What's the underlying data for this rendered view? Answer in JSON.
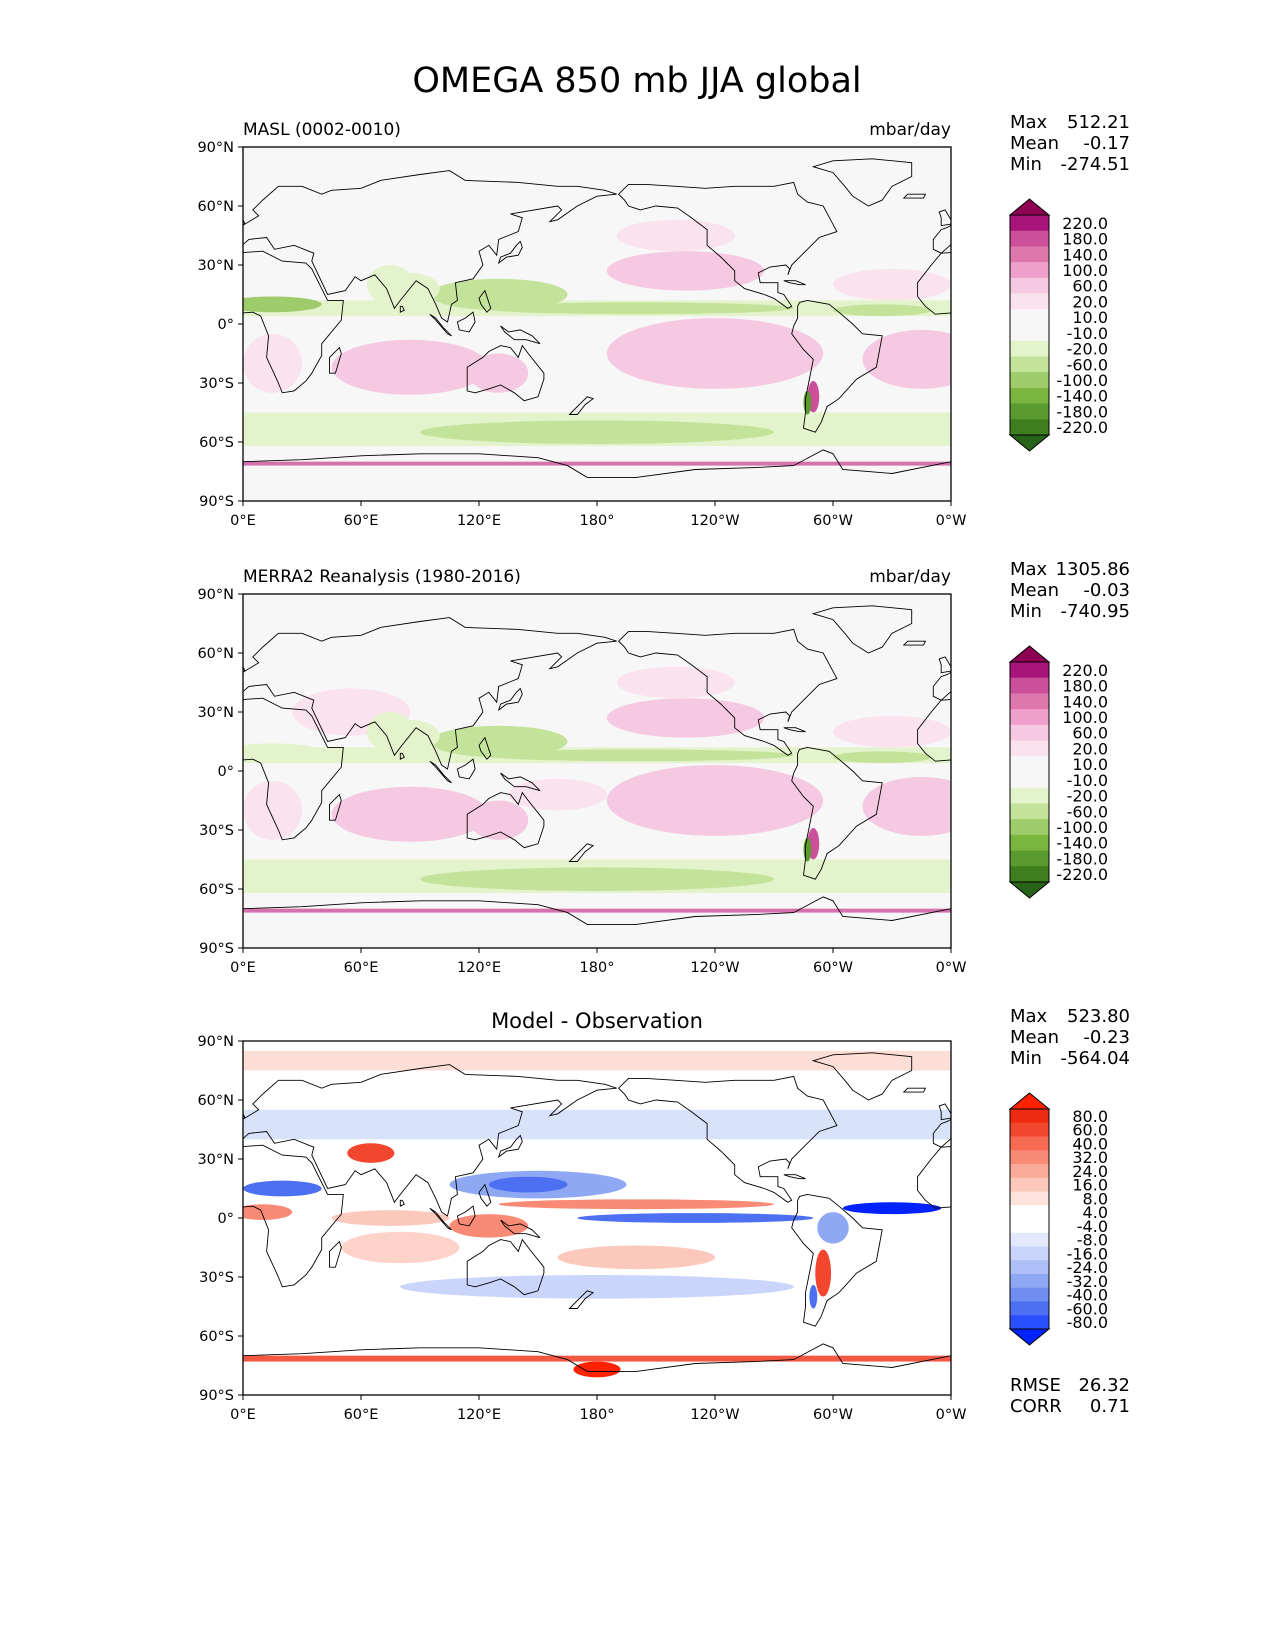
{
  "figure": {
    "title": "OMEGA 850 mb JJA global"
  },
  "colors": {
    "land_outline": "#000000",
    "omega_scale": [
      "#276419",
      "#3d7f1f",
      "#5a9a2e",
      "#79b53f",
      "#9fcc6a",
      "#c4e39a",
      "#e3f3cb",
      "#f7f7f7",
      "#f7f7f7",
      "#fbe2ef",
      "#f5c9e1",
      "#ee9fca",
      "#de77ae",
      "#cc4f9a",
      "#a7147a",
      "#8e0152"
    ],
    "diff_scale": [
      "#0022ff",
      "#2a4fff",
      "#4d6ff2",
      "#6f8ef0",
      "#8fa8f4",
      "#aebff7",
      "#c9d5fa",
      "#e2e9fd",
      "#ffffff",
      "#ffffff",
      "#fde3dc",
      "#fcc8bb",
      "#fbaa99",
      "#f98b76",
      "#f66a52",
      "#f2462f",
      "#ee2a12",
      "#ff2200"
    ]
  },
  "panels": [
    {
      "id": "model",
      "left_title": "MASL (0002-0010)",
      "center_title": "",
      "right_title": "mbar/day",
      "stats": {
        "max_label": "Max",
        "max_value": "512.21",
        "mean_label": "Mean",
        "mean_value": "-0.17",
        "min_label": "Min",
        "min_value": "-274.51"
      },
      "colorbar_levels": [
        "220.0",
        "180.0",
        "140.0",
        "100.0",
        "60.0",
        "20.0",
        "10.0",
        "-10.0",
        "-20.0",
        "-60.0",
        "-100.0",
        "-140.0",
        "-180.0",
        "-220.0"
      ],
      "footer": null
    },
    {
      "id": "obs",
      "left_title": "MERRA2 Reanalysis (1980-2016)",
      "center_title": "",
      "right_title": "mbar/day",
      "stats": {
        "max_label": "Max",
        "max_value": "1305.86",
        "mean_label": "Mean",
        "mean_value": "-0.03",
        "min_label": "Min",
        "min_value": "-740.95"
      },
      "colorbar_levels": [
        "220.0",
        "180.0",
        "140.0",
        "100.0",
        "60.0",
        "20.0",
        "10.0",
        "-10.0",
        "-20.0",
        "-60.0",
        "-100.0",
        "-140.0",
        "-180.0",
        "-220.0"
      ],
      "footer": null
    },
    {
      "id": "diff",
      "left_title": "",
      "center_title": "Model - Observation",
      "right_title": "",
      "stats": {
        "max_label": "Max",
        "max_value": "523.80",
        "mean_label": "Mean",
        "mean_value": "-0.23",
        "min_label": "Min",
        "min_value": "-564.04"
      },
      "colorbar_levels": [
        "80.0",
        "60.0",
        "40.0",
        "32.0",
        "24.0",
        "16.0",
        "8.0",
        "4.0",
        "-4.0",
        "-8.0",
        "-16.0",
        "-24.0",
        "-32.0",
        "-40.0",
        "-60.0",
        "-80.0"
      ],
      "footer": {
        "rmse_label": "RMSE",
        "rmse_value": "26.32",
        "corr_label": "CORR",
        "corr_value": "0.71"
      }
    }
  ],
  "axes": {
    "lat_ticks": [
      "90°N",
      "60°N",
      "30°N",
      "0°",
      "30°S",
      "60°S",
      "90°S"
    ],
    "lon_ticks": [
      "0°E",
      "60°E",
      "120°E",
      "180°",
      "120°W",
      "60°W",
      "0°W"
    ]
  }
}
